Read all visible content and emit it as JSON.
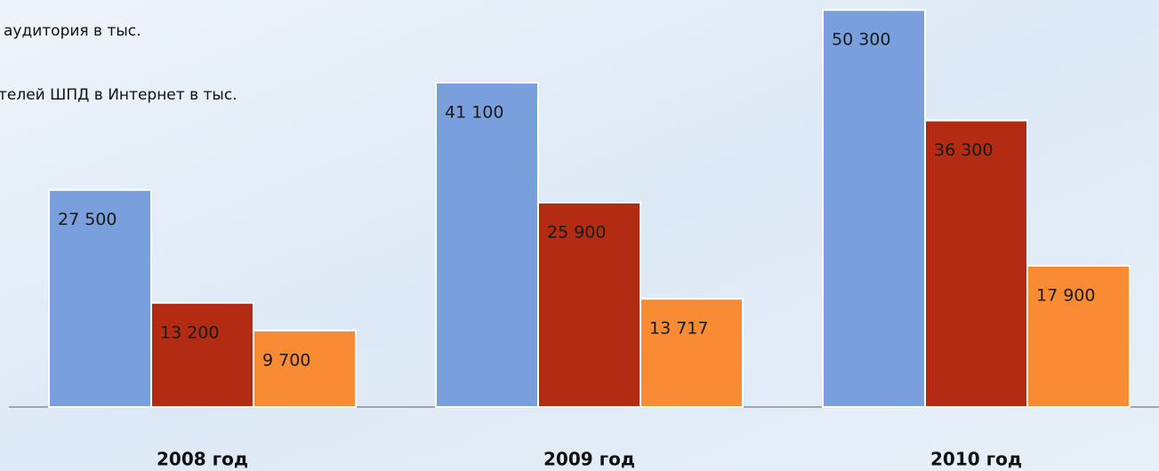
{
  "chart_data": {
    "type": "bar",
    "categories": [
      "2008 год",
      "2009 год",
      "2010 год"
    ],
    "series": [
      {
        "name": "аудитория в тыс.",
        "color": "#7a9fdd",
        "values": [
          27500,
          41100,
          50300
        ],
        "value_labels": [
          "27 500",
          "41 100",
          "50 300"
        ]
      },
      {
        "name": "телей ШПД в Интернет в тыс.",
        "color": "#b22b12",
        "values": [
          13200,
          25900,
          36300
        ],
        "value_labels": [
          "13 200",
          "25 900",
          "36 300"
        ]
      },
      {
        "color": "#fa8b35",
        "values": [
          9700,
          13717,
          17900
        ],
        "value_labels": [
          "9 700",
          "13 717",
          "17 900"
        ]
      }
    ],
    "ylim": [
      0,
      51000
    ]
  }
}
